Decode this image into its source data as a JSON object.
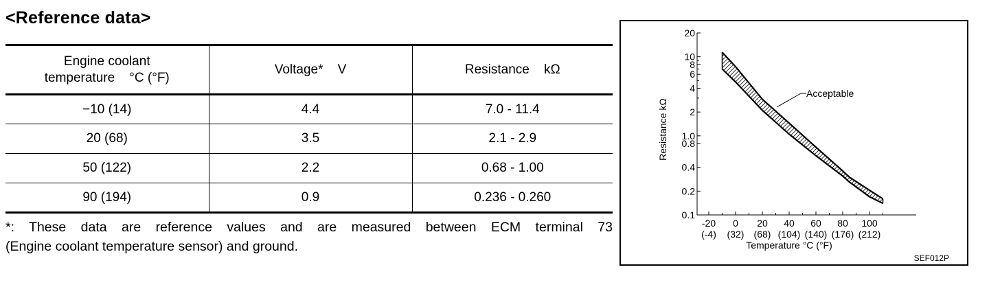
{
  "heading": "<Reference data>",
  "table": {
    "headers": [
      [
        "Engine coolant",
        "temperature    °C (°F)"
      ],
      "Voltage*    V",
      "Resistance    kΩ"
    ],
    "rows": [
      [
        "−10 (14)",
        "4.4",
        "7.0 - 11.4"
      ],
      [
        "20 (68)",
        "3.5",
        "2.1 - 2.9"
      ],
      [
        "50 (122)",
        "2.2",
        "0.68 - 1.00"
      ],
      [
        "90 (194)",
        "0.9",
        "0.236 - 0.260"
      ]
    ]
  },
  "note": {
    "line1": "*: These data are reference values and are measured between ECM terminal 73",
    "line2": "(Engine coolant temperature sensor) and ground."
  },
  "chart_data": {
    "type": "area",
    "ylabel": "Resistance  kΩ",
    "xlabel": "Temperature °C (°F)",
    "y_scale": "log",
    "ylim": [
      0.1,
      20
    ],
    "xlim": [
      -30,
      130
    ],
    "y_ticks": [
      {
        "value": 20,
        "label": "20"
      },
      {
        "value": 10,
        "label": "10"
      },
      {
        "value": 8,
        "label": "8"
      },
      {
        "value": 6,
        "label": "6"
      },
      {
        "value": 4,
        "label": "4"
      },
      {
        "value": 2,
        "label": "2"
      },
      {
        "value": 1,
        "label": "1.0"
      },
      {
        "value": 0.8,
        "label": "0.8"
      },
      {
        "value": 0.4,
        "label": "0.4"
      },
      {
        "value": 0.2,
        "label": "0.2"
      },
      {
        "value": 0.1,
        "label": "0.1"
      }
    ],
    "x_ticks": [
      {
        "value": -20,
        "label": "-20",
        "sub": "(-4)"
      },
      {
        "value": 0,
        "label": "0",
        "sub": "(32)"
      },
      {
        "value": 20,
        "label": "20",
        "sub": "(68)"
      },
      {
        "value": 40,
        "label": "40",
        "sub": "(104)"
      },
      {
        "value": 60,
        "label": "60",
        "sub": "(140)"
      },
      {
        "value": 80,
        "label": "80",
        "sub": "(176)"
      },
      {
        "value": 100,
        "label": "100",
        "sub": "(212)"
      }
    ],
    "band": {
      "name": "Acceptable",
      "x": [
        -10,
        0,
        20,
        40,
        60,
        80,
        85,
        100,
        110
      ],
      "upper": [
        11.4,
        7.5,
        2.9,
        1.45,
        0.72,
        0.36,
        0.3,
        0.205,
        0.16
      ],
      "lower": [
        7.0,
        4.8,
        2.1,
        1.05,
        0.56,
        0.31,
        0.26,
        0.17,
        0.14
      ]
    },
    "figure_code": "SEF012P"
  }
}
